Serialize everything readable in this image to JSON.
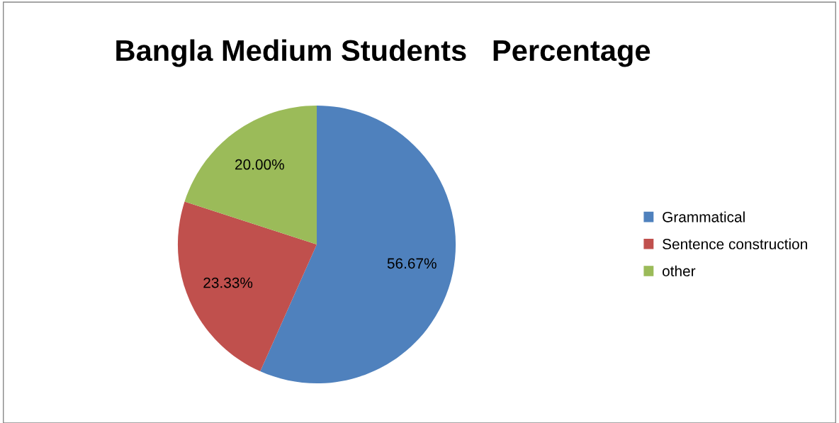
{
  "chart_data": {
    "type": "pie",
    "title": "Bangla Medium Students   Percentage",
    "categories": [
      "Grammatical",
      "Sentence construction",
      "other"
    ],
    "values": [
      56.67,
      23.33,
      20.0
    ],
    "colors": [
      "#4f81bd",
      "#c0504d",
      "#9bbb59"
    ],
    "value_labels": [
      "56.67%",
      "23.33%",
      "20.00%"
    ],
    "legend": "right"
  }
}
